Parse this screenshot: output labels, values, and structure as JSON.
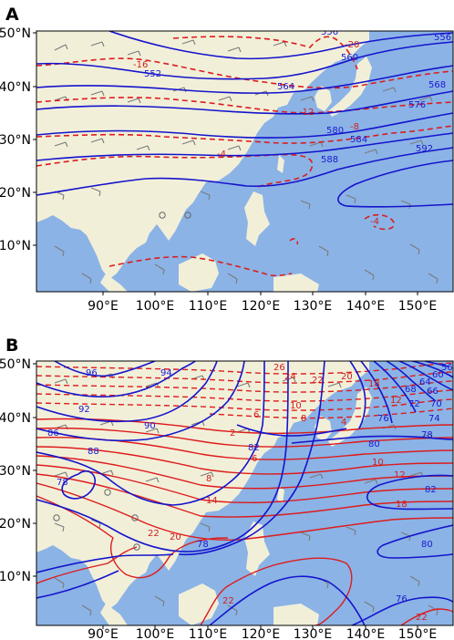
{
  "colors": {
    "ocean": "#8bb3e6",
    "land": "#f2efd9",
    "blue_contour": "#1414cc",
    "red_contour": "#dd1c1c",
    "wind_barb": "#7a7a7a",
    "frame": "#000000"
  },
  "panels": [
    {
      "letter": "A",
      "lat_labels": [
        "50°N",
        "40°N",
        "30°N",
        "20°N",
        "10°N"
      ],
      "lon_labels": [
        "90°E",
        "100°E",
        "110°E",
        "120°E",
        "130°E",
        "140°E",
        "150°E"
      ],
      "blue_labels": [
        "556",
        "556",
        "552",
        "560",
        "564",
        "568",
        "576",
        "580",
        "584",
        "588",
        "592"
      ],
      "red_labels": [
        "-20",
        "-16",
        "-12",
        "-8",
        "-4",
        "-4"
      ]
    },
    {
      "letter": "B",
      "lat_labels": [
        "50°N",
        "40°N",
        "30°N",
        "20°N",
        "10°N"
      ],
      "lon_labels": [
        "90°E",
        "100°E",
        "110°E",
        "120°E",
        "130°E",
        "140°E",
        "150°E"
      ],
      "blue_labels": [
        "96",
        "94",
        "92",
        "90",
        "88",
        "86",
        "78",
        "82",
        "80",
        "76",
        "78",
        "80",
        "82",
        "56",
        "60",
        "64",
        "66",
        "68",
        "70",
        "72",
        "74",
        "78",
        "76"
      ],
      "red_labels": [
        "26",
        "24",
        "22",
        "20",
        "18",
        "12",
        "10",
        "8",
        "6",
        "4",
        "2",
        "6",
        "8",
        "10",
        "12",
        "14",
        "18",
        "20",
        "22",
        "22",
        "22"
      ]
    }
  ]
}
